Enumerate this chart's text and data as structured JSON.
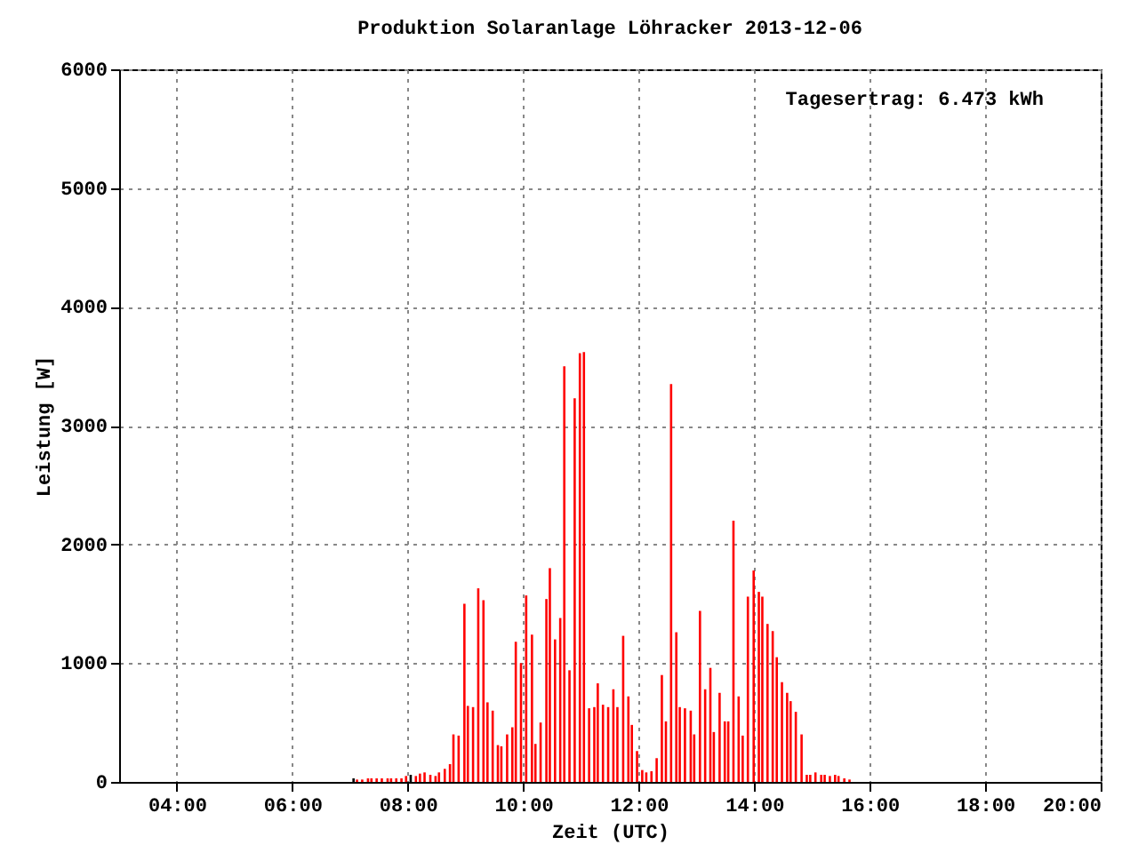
{
  "chart_data": {
    "type": "bar",
    "title": "Produktion Solaranlage Löhracker 2013-12-06",
    "xlabel": "Zeit (UTC)",
    "ylabel": "Leistung [W]",
    "annotations": [
      "Tagesertrag: 6.473 kWh"
    ],
    "x": [
      7.06,
      7.12,
      7.21,
      7.31,
      7.37,
      7.46,
      7.55,
      7.65,
      7.71,
      7.8,
      7.89,
      7.97,
      8.05,
      8.14,
      8.21,
      8.29,
      8.39,
      8.48,
      8.54,
      8.64,
      8.73,
      8.79,
      8.88,
      8.98,
      9.04,
      9.13,
      9.22,
      9.31,
      9.38,
      9.47,
      9.56,
      9.62,
      9.72,
      9.81,
      9.87,
      9.96,
      10.05,
      10.15,
      10.21,
      10.3,
      10.4,
      10.46,
      10.55,
      10.64,
      10.71,
      10.8,
      10.89,
      10.98,
      11.05,
      11.14,
      11.23,
      11.29,
      11.38,
      11.47,
      11.56,
      11.63,
      11.73,
      11.82,
      11.88,
      11.97,
      12.06,
      12.13,
      12.22,
      12.31,
      12.4,
      12.47,
      12.56,
      12.65,
      12.71,
      12.8,
      12.9,
      12.96,
      13.06,
      13.15,
      13.24,
      13.3,
      13.4,
      13.49,
      13.55,
      13.64,
      13.73,
      13.8,
      13.89,
      13.99,
      14.08,
      14.14,
      14.23,
      14.32,
      14.39,
      14.48,
      14.57,
      14.63,
      14.72,
      14.82,
      14.91,
      14.97,
      15.06,
      15.16,
      15.22,
      15.31,
      15.4,
      15.46,
      15.56,
      15.65
    ],
    "values": [
      30,
      20,
      20,
      30,
      30,
      30,
      30,
      30,
      30,
      30,
      30,
      50,
      60,
      50,
      70,
      80,
      60,
      50,
      80,
      110,
      150,
      400,
      390,
      1500,
      640,
      630,
      1630,
      1530,
      670,
      600,
      310,
      300,
      400,
      460,
      1180,
      1000,
      1570,
      1240,
      320,
      500,
      1540,
      1800,
      1200,
      1380,
      3500,
      940,
      3230,
      3610,
      3620,
      620,
      630,
      830,
      650,
      630,
      780,
      630,
      1230,
      720,
      480,
      260,
      100,
      80,
      90,
      200,
      900,
      510,
      3350,
      1260,
      630,
      620,
      600,
      400,
      1440,
      780,
      960,
      420,
      750,
      510,
      510,
      2200,
      720,
      390,
      1560,
      1780,
      1600,
      1560,
      1330,
      1270,
      1050,
      840,
      750,
      680,
      590,
      400,
      60,
      60,
      80,
      60,
      60,
      50,
      60,
      50,
      30,
      20
    ],
    "colors": [
      "#000000",
      "#ff0000",
      "#ff0000",
      "#ff0000",
      "#ff0000",
      "#ff0000",
      "#ff0000",
      "#ff0000",
      "#ff0000",
      "#ff0000",
      "#ff0000",
      "#ff0000",
      "#000000",
      "#ff0000",
      "#ff0000",
      "#ff0000",
      "#ff0000",
      "#ff0000",
      "#ff0000",
      "#ff0000",
      "#ff0000",
      "#ff0000",
      "#ff0000",
      "#ff0000",
      "#ff0000",
      "#ff0000",
      "#ff0000",
      "#ff0000",
      "#ff0000",
      "#ff0000",
      "#ff0000",
      "#ff0000",
      "#ff0000",
      "#ff0000",
      "#ff0000",
      "#ff0000",
      "#ff0000",
      "#ff0000",
      "#ff0000",
      "#ff0000",
      "#ff0000",
      "#ff0000",
      "#ff0000",
      "#ff0000",
      "#ff0000",
      "#ff0000",
      "#ff0000",
      "#ff0000",
      "#ff0000",
      "#ff0000",
      "#ff0000",
      "#ff0000",
      "#ff0000",
      "#ff0000",
      "#ff0000",
      "#ff0000",
      "#ff0000",
      "#ff0000",
      "#ff0000",
      "#ff0000",
      "#ff0000",
      "#ff0000",
      "#ff0000",
      "#ff0000",
      "#ff0000",
      "#ff0000",
      "#ff0000",
      "#ff0000",
      "#ff0000",
      "#ff0000",
      "#ff0000",
      "#ff0000",
      "#ff0000",
      "#ff0000",
      "#ff0000",
      "#ff0000",
      "#ff0000",
      "#ff0000",
      "#ff0000",
      "#ff0000",
      "#ff0000",
      "#ff0000",
      "#ff0000",
      "#ff0000",
      "#ff0000",
      "#ff0000",
      "#ff0000",
      "#ff0000",
      "#ff0000",
      "#ff0000",
      "#ff0000",
      "#ff0000",
      "#ff0000",
      "#ff0000",
      "#ff0000",
      "#ff0000",
      "#ff0000",
      "#ff0000",
      "#ff0000",
      "#ff0000",
      "#ff0000",
      "#ff0000",
      "#ff0000",
      "#ff0000"
    ],
    "xlim": [
      3,
      20
    ],
    "ylim": [
      0,
      6000
    ],
    "xticks": [
      {
        "value": 4,
        "label": "04:00"
      },
      {
        "value": 6,
        "label": "06:00"
      },
      {
        "value": 8,
        "label": "08:00"
      },
      {
        "value": 10,
        "label": "10:00"
      },
      {
        "value": 12,
        "label": "12:00"
      },
      {
        "value": 14,
        "label": "14:00"
      },
      {
        "value": 16,
        "label": "16:00"
      },
      {
        "value": 18,
        "label": "18:00"
      },
      {
        "value": 20,
        "label": "20:00"
      }
    ],
    "yticks": [
      0,
      1000,
      2000,
      3000,
      4000,
      5000,
      6000
    ],
    "grid": true
  }
}
